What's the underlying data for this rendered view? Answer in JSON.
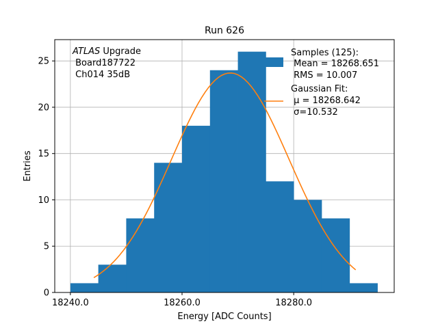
{
  "chart_data": {
    "type": "bar",
    "title": "Run 626",
    "xlabel": "Energy [ADC Counts]",
    "ylabel": "Entries",
    "xlim": [
      18237.2,
      18298.0
    ],
    "ylim": [
      0,
      27.3
    ],
    "xticks": [
      "18240.0",
      "18260.0",
      "18280.0"
    ],
    "xtick_values": [
      18240,
      18260,
      18280
    ],
    "yticks": [
      "0",
      "5",
      "10",
      "15",
      "20",
      "25"
    ],
    "ytick_values": [
      0,
      5,
      10,
      15,
      20,
      25
    ],
    "grid": true,
    "bins": [
      {
        "x0": 18240,
        "x1": 18245,
        "value": 1
      },
      {
        "x0": 18245,
        "x1": 18250,
        "value": 3
      },
      {
        "x0": 18250,
        "x1": 18255,
        "value": 8
      },
      {
        "x0": 18255,
        "x1": 18260,
        "value": 14
      },
      {
        "x0": 18260,
        "x1": 18265,
        "value": 18
      },
      {
        "x0": 18265,
        "x1": 18270,
        "value": 24
      },
      {
        "x0": 18270,
        "x1": 18275,
        "value": 26
      },
      {
        "x0": 18275,
        "x1": 18280,
        "value": 12
      },
      {
        "x0": 18280,
        "x1": 18285,
        "value": 10
      },
      {
        "x0": 18285,
        "x1": 18290,
        "value": 8
      },
      {
        "x0": 18290,
        "x1": 18295,
        "value": 1
      }
    ],
    "fit": {
      "mu": 18268.642,
      "sigma": 10.532,
      "amplitude": 23.7,
      "x_range": [
        18244.2,
        18291.1
      ]
    },
    "colors": {
      "histogram": "#1f77b4",
      "fit": "#ff7f0e"
    },
    "annotation": {
      "emph": "ATLAS",
      "rest": " Upgrade",
      "line2": " Board187722",
      "line3": " Ch014 35dB"
    },
    "legend": {
      "placement": "top-right",
      "samples": [
        "Samples (125):",
        " Mean = 18268.651",
        " RMS = 10.007"
      ],
      "fit": [
        "Gaussian Fit:",
        " μ = 18268.642",
        " σ=10.532"
      ]
    }
  }
}
